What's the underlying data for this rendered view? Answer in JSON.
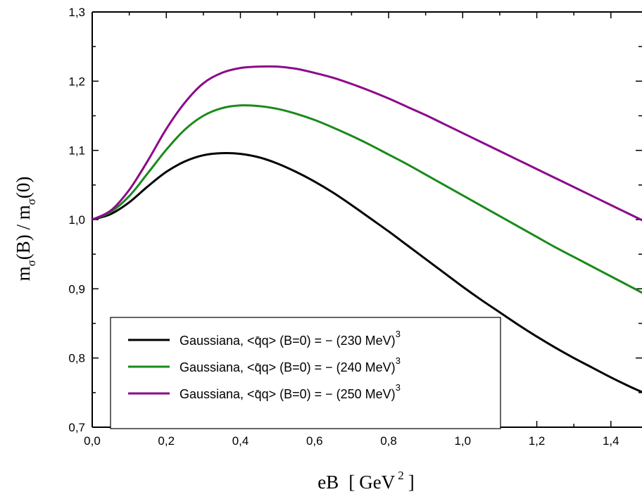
{
  "chart_data": {
    "type": "line",
    "title": "",
    "xlabel": {
      "main": "eB",
      "bracket_open": "[",
      "unit": "GeV",
      "unit_exp": "2",
      "bracket_close": "]"
    },
    "ylabel": {
      "m1": "m",
      "sub1": "σ",
      "mid": "(B) / m",
      "sub2": "σ",
      "end": "(0)"
    },
    "xlim": [
      0,
      1.5
    ],
    "ylim": [
      0.7,
      1.3
    ],
    "x_ticks": [
      "0,0",
      "0,2",
      "0,4",
      "0,6",
      "0,8",
      "1,0",
      "1,2",
      "1,4"
    ],
    "y_ticks": [
      "0,7",
      "0,8",
      "0,9",
      "1,0",
      "1,1",
      "1,2",
      "1,3"
    ],
    "grid": false,
    "legend_position": "bottom-left",
    "x": [
      0.0,
      0.05,
      0.1,
      0.15,
      0.2,
      0.25,
      0.3,
      0.35,
      0.4,
      0.45,
      0.5,
      0.55,
      0.6,
      0.65,
      0.7,
      0.75,
      0.8,
      0.85,
      0.9,
      0.95,
      1.0,
      1.05,
      1.1,
      1.15,
      1.2,
      1.25,
      1.3,
      1.35,
      1.4,
      1.45,
      1.5
    ],
    "series": [
      {
        "name": "Gaussiana, <q̄q> (B=0) = − (230 MeV)",
        "superscript": "3",
        "color": "#000000",
        "values": [
          1.0,
          1.008,
          1.025,
          1.048,
          1.069,
          1.084,
          1.093,
          1.096,
          1.095,
          1.09,
          1.081,
          1.069,
          1.055,
          1.039,
          1.021,
          1.002,
          0.983,
          0.963,
          0.943,
          0.923,
          0.903,
          0.884,
          0.866,
          0.848,
          0.831,
          0.815,
          0.8,
          0.786,
          0.772,
          0.759,
          0.747
        ]
      },
      {
        "name": "Gaussiana, <q̄q> (B=0) = − (240 MeV)",
        "superscript": "3",
        "color": "#1a8a1a",
        "values": [
          1.0,
          1.011,
          1.034,
          1.067,
          1.101,
          1.13,
          1.15,
          1.161,
          1.165,
          1.164,
          1.16,
          1.153,
          1.144,
          1.133,
          1.121,
          1.108,
          1.094,
          1.08,
          1.065,
          1.05,
          1.035,
          1.02,
          1.005,
          0.99,
          0.975,
          0.96,
          0.946,
          0.932,
          0.918,
          0.904,
          0.89
        ]
      },
      {
        "name": "Gaussiana, <q̄q> (B=0) = − (250 MeV)",
        "superscript": "3",
        "color": "#8b0a8b",
        "values": [
          1.0,
          1.013,
          1.043,
          1.085,
          1.131,
          1.169,
          1.197,
          1.212,
          1.219,
          1.221,
          1.221,
          1.218,
          1.212,
          1.205,
          1.196,
          1.186,
          1.175,
          1.163,
          1.151,
          1.138,
          1.125,
          1.112,
          1.099,
          1.086,
          1.073,
          1.06,
          1.047,
          1.034,
          1.021,
          1.008,
          0.995
        ]
      }
    ]
  }
}
